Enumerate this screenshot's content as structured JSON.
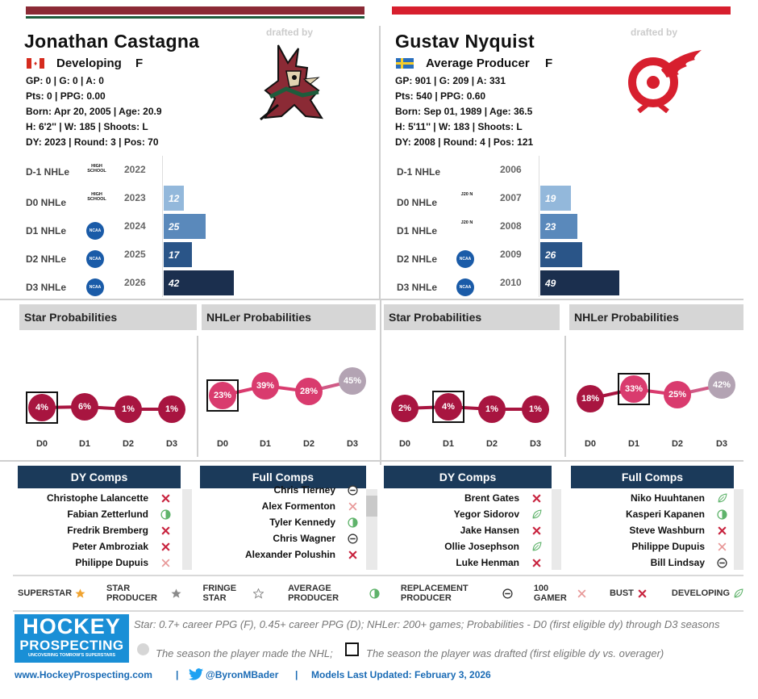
{
  "colors": {
    "coyotes_top": "#8b2a35",
    "coyotes_stripe": "#1e5c3c",
    "wings_top": "#d71f2e",
    "bar_light": "#93b8db",
    "bar_mid": "#5a89bb",
    "bar_dark": "#2a5588",
    "bar_darkest": "#1b2f4e",
    "prob_dark": "#a81540",
    "prob_mid": "#d93b6e",
    "prob_grey": "#b3a3b3",
    "comp_head": "#1b3a5a"
  },
  "players": [
    {
      "name": "Jonathan Castagna",
      "flag": "canada-flag-icon",
      "status": "Developing",
      "position": "F",
      "drafted_by": "drafted by",
      "team_logo": "coyotes-logo",
      "stats": [
        "GP: 0 | G: 0 | A: 0",
        "Pts: 0 | PPG: 0.00",
        "Born: Apr 20, 2005 | Age: 20.9",
        "H: 6'2'' | W: 185 | Shoots: L",
        "DY: 2023 | Round: 3 | Pos: 70"
      ],
      "seasons": [
        {
          "label": "D-1 NHLe",
          "league": "HIGH SCHOOL",
          "year": "2022",
          "value": null
        },
        {
          "label": "D0 NHLe",
          "league": "HIGH SCHOOL",
          "year": "2023",
          "value": 12
        },
        {
          "label": "D1 NHLe",
          "league": "NCAA",
          "year": "2024",
          "value": 25
        },
        {
          "label": "D2 NHLe",
          "league": "NCAA",
          "year": "2025",
          "value": 17
        },
        {
          "label": "D3 NHLe",
          "league": "NCAA",
          "year": "2026",
          "value": 42
        }
      ],
      "star_title": "Star Probabilities",
      "nhler_title": "NHLer Probabilities",
      "star_probs": [
        "4%",
        "6%",
        "1%",
        "1%"
      ],
      "nhler_probs": [
        "23%",
        "39%",
        "28%",
        "45%"
      ],
      "x_labels": [
        "D0",
        "D1",
        "D2",
        "D3"
      ],
      "dy_title": "DY Comps",
      "full_title": "Full Comps",
      "dy_comps": [
        {
          "name": "Christophe Lalancette",
          "icon": "bust-icon"
        },
        {
          "name": "Fabian Zetterlund",
          "icon": "average-producer-icon"
        },
        {
          "name": "Fredrik Bremberg",
          "icon": "bust-icon"
        },
        {
          "name": "Peter Ambroziak",
          "icon": "bust-icon"
        },
        {
          "name": "Philippe Dupuis",
          "icon": "100-gamer-icon"
        }
      ],
      "full_comps": [
        {
          "name": "Chris Tierney",
          "icon": "replacement-producer-icon"
        },
        {
          "name": "Alex Formenton",
          "icon": "100-gamer-icon"
        },
        {
          "name": "Tyler Kennedy",
          "icon": "average-producer-icon"
        },
        {
          "name": "Chris Wagner",
          "icon": "replacement-producer-icon"
        },
        {
          "name": "Alexander Polushin",
          "icon": "bust-icon"
        }
      ]
    },
    {
      "name": "Gustav Nyquist",
      "flag": "sweden-flag-icon",
      "status": "Average Producer",
      "position": "F",
      "drafted_by": "drafted by",
      "team_logo": "red-wings-logo",
      "stats": [
        "GP: 901 | G: 209 | A: 331",
        "Pts: 540 | PPG: 0.60",
        "Born: Sep 01, 1989 | Age: 36.5",
        "H: 5'11'' | W: 183 | Shoots: L",
        "DY: 2008 | Round: 4 | Pos: 121"
      ],
      "seasons": [
        {
          "label": "D-1 NHLe",
          "league": "",
          "year": "2006",
          "value": null
        },
        {
          "label": "D0 NHLe",
          "league": "J20 N",
          "year": "2007",
          "value": 19
        },
        {
          "label": "D1 NHLe",
          "league": "J20 N",
          "year": "2008",
          "value": 23
        },
        {
          "label": "D2 NHLe",
          "league": "NCAA",
          "year": "2009",
          "value": 26
        },
        {
          "label": "D3 NHLe",
          "league": "NCAA",
          "year": "2010",
          "value": 49
        }
      ],
      "star_title": "Star Probabilities",
      "nhler_title": "NHLer Probabilities",
      "star_probs": [
        "2%",
        "4%",
        "1%",
        "1%"
      ],
      "nhler_probs": [
        "18%",
        "33%",
        "25%",
        "42%"
      ],
      "x_labels": [
        "D0",
        "D1",
        "D2",
        "D3"
      ],
      "dy_title": "DY Comps",
      "full_title": "Full Comps",
      "dy_comps": [
        {
          "name": "Brent Gates",
          "icon": "bust-icon"
        },
        {
          "name": "Yegor Sidorov",
          "icon": "developing-icon"
        },
        {
          "name": "Jake Hansen",
          "icon": "bust-icon"
        },
        {
          "name": "Ollie Josephson",
          "icon": "developing-icon"
        },
        {
          "name": "Luke Henman",
          "icon": "bust-icon"
        }
      ],
      "full_comps": [
        {
          "name": "Niko Huuhtanen",
          "icon": "developing-icon"
        },
        {
          "name": "Kasperi Kapanen",
          "icon": "average-producer-icon"
        },
        {
          "name": "Steve Washburn",
          "icon": "bust-icon"
        },
        {
          "name": "Philippe Dupuis",
          "icon": "100-gamer-icon"
        },
        {
          "name": "Bill Lindsay",
          "icon": "replacement-producer-icon"
        }
      ]
    }
  ],
  "legend": [
    {
      "label": "SUPERSTAR",
      "icon": "superstar-icon"
    },
    {
      "label": "STAR PRODUCER",
      "icon": "star-producer-icon"
    },
    {
      "label": "FRINGE STAR",
      "icon": "fringe-star-icon"
    },
    {
      "label": "AVERAGE PRODUCER",
      "icon": "average-producer-icon"
    },
    {
      "label": "REPLACEMENT PRODUCER",
      "icon": "replacement-producer-icon"
    },
    {
      "label": "100 GAMER",
      "icon": "100-gamer-icon"
    },
    {
      "label": "BUST",
      "icon": "bust-icon"
    },
    {
      "label": "DEVELOPING",
      "icon": "developing-icon"
    }
  ],
  "brand": {
    "line1": "HOCKEY",
    "line2": "PROSPECTING",
    "tagline": "UNCOVERING TOMROW'S SUPERSTARS"
  },
  "notes": {
    "definition": "Star: 0.7+ career PPG (F), 0.45+ career PPG (D); NHLer: 200+ games; Probabilities - D0 (first eligible dy) through D3 seasons",
    "circle_note": "The season the player made the NHL;",
    "box_note": "The season the player was drafted (first eligible dy vs. overager)"
  },
  "footer": {
    "site": "www.HockeyProspecting.com",
    "sep1": "|",
    "twitter": "@ByronMBader",
    "sep2": "|",
    "updated": "Models Last Updated: February 3, 2026"
  }
}
